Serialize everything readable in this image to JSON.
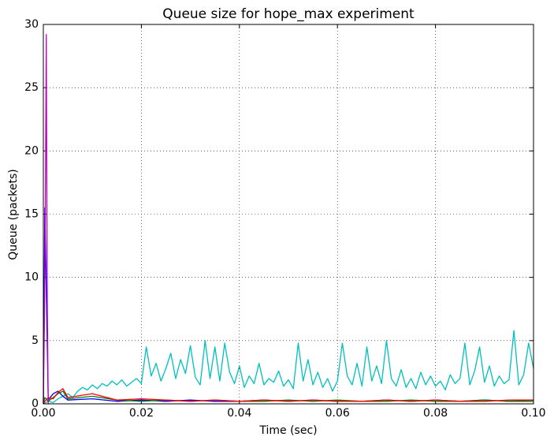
{
  "chart_data": {
    "type": "line",
    "title": "Queue size for hope_max experiment",
    "x_label": "Time (sec)",
    "y_label": "Queue (packets)",
    "xlim": [
      0,
      0.1
    ],
    "ylim": [
      0,
      30
    ],
    "xticks": [
      {
        "value": 0,
        "label": "0.00"
      },
      0.02,
      0.04,
      0.06,
      0.08,
      {
        "value": 0.1,
        "label": "0.10"
      }
    ],
    "yticks": [
      0,
      5,
      10,
      15,
      20,
      25,
      30
    ],
    "grid": true,
    "series": [
      {
        "color": "#00bfbf",
        "x": [
          0,
          0.001,
          0.002,
          0.003,
          0.004,
          0.005,
          0.006,
          0.007,
          0.008,
          0.009,
          0.01,
          0.011,
          0.012,
          0.013,
          0.014,
          0.015,
          0.016,
          0.017,
          0.018,
          0.019,
          0.02,
          0.021,
          0.022,
          0.023,
          0.024,
          0.025,
          0.026,
          0.027,
          0.028,
          0.029,
          0.03,
          0.031,
          0.032,
          0.033,
          0.034,
          0.035,
          0.036,
          0.037,
          0.038,
          0.039,
          0.04,
          0.041,
          0.042,
          0.043,
          0.044,
          0.045,
          0.046,
          0.047,
          0.048,
          0.049,
          0.05,
          0.051,
          0.052,
          0.053,
          0.054,
          0.055,
          0.056,
          0.057,
          0.058,
          0.059,
          0.06,
          0.061,
          0.062,
          0.063,
          0.064,
          0.065,
          0.066,
          0.067,
          0.068,
          0.069,
          0.07,
          0.071,
          0.072,
          0.073,
          0.074,
          0.075,
          0.076,
          0.077,
          0.078,
          0.079,
          0.08,
          0.081,
          0.082,
          0.083,
          0.084,
          0.085,
          0.086,
          0.087,
          0.088,
          0.089,
          0.09,
          0.091,
          0.092,
          0.093,
          0.094,
          0.095,
          0.096,
          0.097,
          0.098,
          0.099,
          0.1
        ],
        "values": [
          0,
          0.2,
          0.1,
          0.4,
          0.6,
          0.8,
          0.5,
          1.0,
          1.3,
          1.1,
          1.5,
          1.2,
          1.6,
          1.4,
          1.8,
          1.5,
          1.9,
          1.4,
          1.7,
          2.0,
          1.6,
          4.5,
          2.2,
          3.2,
          1.8,
          2.8,
          4.0,
          2.0,
          3.5,
          2.4,
          4.6,
          2.1,
          1.5,
          5.0,
          2.0,
          4.5,
          1.8,
          4.8,
          2.5,
          1.6,
          3.0,
          1.3,
          2.2,
          1.6,
          3.2,
          1.5,
          2.0,
          1.7,
          2.6,
          1.4,
          1.9,
          1.2,
          4.8,
          1.8,
          3.5,
          1.5,
          2.5,
          1.3,
          2.0,
          1.0,
          1.8,
          4.8,
          2.2,
          1.5,
          3.2,
          1.4,
          4.5,
          1.8,
          3.0,
          1.6,
          5.0,
          2.0,
          1.4,
          2.7,
          1.3,
          2.0,
          1.2,
          2.5,
          1.5,
          2.2,
          1.4,
          1.8,
          1.1,
          2.3,
          1.6,
          2.0,
          4.8,
          1.5,
          2.6,
          4.5,
          1.7,
          3.0,
          1.4,
          2.2,
          1.6,
          1.9,
          5.8,
          1.5,
          2.3,
          4.8,
          2.8
        ]
      },
      {
        "color": "#0000ff",
        "x": [
          0,
          0.0003,
          0.001,
          0.002,
          0.003,
          0.004,
          0.005,
          0.01,
          0.015,
          0.02,
          0.025,
          0.03,
          0.035,
          0.04,
          0.045,
          0.05,
          0.055,
          0.06,
          0.065,
          0.07,
          0.075,
          0.08,
          0.085,
          0.09,
          0.095,
          0.1
        ],
        "values": [
          0,
          15.5,
          0.3,
          0.8,
          1.0,
          0.6,
          0.3,
          0.4,
          0.2,
          0.3,
          0.2,
          0.3,
          0.2,
          0.2,
          0.3,
          0.2,
          0.3,
          0.2,
          0.2,
          0.3,
          0.2,
          0.3,
          0.2,
          0.3,
          0.2,
          0.3
        ]
      },
      {
        "color": "#008000",
        "x": [
          0,
          0.0003,
          0.001,
          0.002,
          0.003,
          0.004,
          0.005,
          0.01,
          0.015,
          0.02,
          0.025,
          0.03,
          0.035,
          0.04,
          0.045,
          0.05,
          0.055,
          0.06,
          0.065,
          0.07,
          0.075,
          0.08,
          0.085,
          0.09,
          0.095,
          0.1
        ],
        "values": [
          0,
          0.5,
          0.2,
          0.5,
          0.8,
          1.0,
          0.4,
          0.6,
          0.3,
          0.2,
          0.3,
          0.2,
          0.3,
          0.2,
          0.2,
          0.3,
          0.2,
          0.3,
          0.2,
          0.2,
          0.3,
          0.2,
          0.2,
          0.3,
          0.2,
          0.2
        ]
      },
      {
        "color": "#ff0000",
        "x": [
          0,
          0.0003,
          0.001,
          0.002,
          0.003,
          0.004,
          0.005,
          0.01,
          0.015,
          0.02,
          0.025,
          0.03,
          0.035,
          0.04,
          0.045,
          0.05,
          0.055,
          0.06,
          0.065,
          0.07,
          0.075,
          0.08,
          0.085,
          0.09,
          0.095,
          0.1
        ],
        "values": [
          0,
          0.2,
          0.5,
          0.4,
          0.9,
          1.2,
          0.5,
          0.8,
          0.3,
          0.4,
          0.3,
          0.2,
          0.3,
          0.2,
          0.3,
          0.2,
          0.3,
          0.2,
          0.2,
          0.3,
          0.2,
          0.3,
          0.2,
          0.2,
          0.3,
          0.3
        ]
      },
      {
        "color": "#bf00bf",
        "x": [
          0,
          0.0002,
          0.0004,
          0.0006,
          0.0008,
          0.001,
          0.0012
        ],
        "values": [
          0,
          6,
          15,
          29.2,
          8,
          0,
          0
        ]
      }
    ]
  }
}
